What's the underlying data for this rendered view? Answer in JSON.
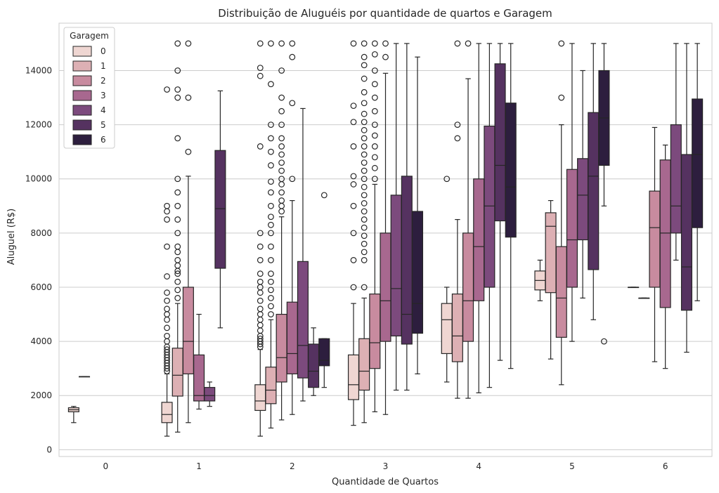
{
  "chart_data": {
    "type": "box",
    "title": "Distribuição de Aluguéis por quantidade de quartos e Garagem",
    "xlabel": "Quantidade de Quartos",
    "ylabel": "Aluguel (R$)",
    "categories": [
      "0",
      "1",
      "2",
      "3",
      "4",
      "5",
      "6"
    ],
    "ylim": [
      -250,
      15750
    ],
    "yticks": [
      0,
      2000,
      4000,
      6000,
      8000,
      10000,
      12000,
      14000
    ],
    "grid": "y",
    "legend": {
      "title": "Garagem",
      "position": "top-left",
      "entries": [
        "0",
        "1",
        "2",
        "3",
        "4",
        "5",
        "6"
      ]
    },
    "colors": [
      "#efd6d2",
      "#ddb0b4",
      "#c88b9f",
      "#a8688f",
      "#7c4a7d",
      "#553260",
      "#2d1e3e"
    ],
    "boxes": [
      {
        "category": "0",
        "garagem": "0",
        "whislo": 1000,
        "q1": 1400,
        "med": 1475,
        "q3": 1550,
        "whishi": 1600,
        "fliers": []
      },
      {
        "category": "0",
        "garagem": "1",
        "whislo": 2700,
        "q1": 2700,
        "med": 2700,
        "q3": 2700,
        "whishi": 2700,
        "fliers": []
      },
      {
        "category": "1",
        "garagem": "0",
        "whislo": 500,
        "q1": 1000,
        "med": 1300,
        "q3": 1750,
        "whishi": 2800,
        "fliers": [
          2900,
          3000,
          3100,
          3200,
          3300,
          3400,
          3500,
          3600,
          3700,
          3800,
          4000,
          4200,
          4500,
          4800,
          5000,
          5200,
          5500,
          5800,
          6400,
          7500,
          8500,
          8800,
          9000,
          13300
        ]
      },
      {
        "category": "1",
        "garagem": "1",
        "whislo": 650,
        "q1": 1980,
        "med": 2750,
        "q3": 3750,
        "whishi": 5400,
        "fliers": [
          5600,
          5900,
          6200,
          6500,
          6600,
          6800,
          7000,
          7300,
          7500,
          8000,
          8500,
          9000,
          9500,
          10000,
          11500,
          13000,
          13300,
          14000,
          15000
        ]
      },
      {
        "category": "1",
        "garagem": "2",
        "whislo": 1000,
        "q1": 2800,
        "med": 4000,
        "q3": 6000,
        "whishi": 10100,
        "fliers": [
          11000,
          13000,
          15000
        ]
      },
      {
        "category": "1",
        "garagem": "3",
        "whislo": 1500,
        "q1": 1800,
        "med": 2000,
        "q3": 3500,
        "whishi": 5000,
        "fliers": []
      },
      {
        "category": "1",
        "garagem": "4",
        "whislo": 1600,
        "q1": 1800,
        "med": 2000,
        "q3": 2300,
        "whishi": 2500,
        "fliers": []
      },
      {
        "category": "1",
        "garagem": "5",
        "whislo": 4500,
        "q1": 6700,
        "med": 8900,
        "q3": 11050,
        "whishi": 13250,
        "fliers": []
      },
      {
        "category": "2",
        "garagem": "0",
        "whislo": 500,
        "q1": 1450,
        "med": 1800,
        "q3": 2400,
        "whishi": 3700,
        "fliers": [
          3800,
          3900,
          4000,
          4100,
          4200,
          4400,
          4600,
          4800,
          5000,
          5200,
          5500,
          5800,
          6000,
          6200,
          6500,
          7000,
          7500,
          8000,
          11200,
          13800,
          14100,
          15000
        ]
      },
      {
        "category": "2",
        "garagem": "1",
        "whislo": 800,
        "q1": 1700,
        "med": 2200,
        "q3": 3050,
        "whishi": 4800,
        "fliers": [
          5000,
          5300,
          5600,
          5900,
          6200,
          6500,
          7000,
          7500,
          8000,
          8300,
          8600,
          9000,
          9500,
          9900,
          10500,
          11000,
          11500,
          12000,
          13500,
          15000
        ]
      },
      {
        "category": "2",
        "garagem": "2",
        "whislo": 1100,
        "q1": 2500,
        "med": 3400,
        "q3": 5000,
        "whishi": 8600,
        "fliers": [
          8800,
          9000,
          9200,
          9500,
          9800,
          10000,
          10300,
          10600,
          10900,
          11200,
          11500,
          12000,
          12500,
          13000,
          14000,
          15000
        ]
      },
      {
        "category": "2",
        "garagem": "3",
        "whislo": 1300,
        "q1": 2800,
        "med": 3550,
        "q3": 5450,
        "whishi": 9200,
        "fliers": [
          10000,
          12800,
          14500,
          15000
        ]
      },
      {
        "category": "2",
        "garagem": "4",
        "whislo": 1800,
        "q1": 2650,
        "med": 3850,
        "q3": 6950,
        "whishi": 12600,
        "fliers": []
      },
      {
        "category": "2",
        "garagem": "5",
        "whislo": 2000,
        "q1": 2300,
        "med": 2900,
        "q3": 3900,
        "whishi": 4500,
        "fliers": []
      },
      {
        "category": "2",
        "garagem": "6",
        "whislo": 2300,
        "q1": 3100,
        "med": 3300,
        "q3": 4100,
        "whishi": 4100,
        "fliers": [
          9400
        ]
      },
      {
        "category": "3",
        "garagem": "0",
        "whislo": 900,
        "q1": 1850,
        "med": 2400,
        "q3": 3500,
        "whishi": 5400,
        "fliers": [
          6000,
          7000,
          8000,
          9000,
          9800,
          10100,
          11200,
          12100,
          12700,
          15000
        ]
      },
      {
        "category": "3",
        "garagem": "1",
        "whislo": 1000,
        "q1": 2200,
        "med": 2900,
        "q3": 4100,
        "whishi": 5600,
        "fliers": [
          6000,
          7000,
          7300,
          7600,
          7900,
          8200,
          8500,
          8800,
          9100,
          9400,
          9700,
          10000,
          10300,
          10600,
          10900,
          11200,
          11500,
          11800,
          12100,
          12400,
          12800,
          13200,
          13700,
          14200,
          14500,
          15000
        ]
      },
      {
        "category": "3",
        "garagem": "2",
        "whislo": 1400,
        "q1": 3000,
        "med": 3950,
        "q3": 5750,
        "whishi": 9800,
        "fliers": [
          10000,
          10400,
          10800,
          11200,
          11600,
          12000,
          12500,
          13000,
          13500,
          14000,
          14600,
          15000
        ]
      },
      {
        "category": "3",
        "garagem": "3",
        "whislo": 1300,
        "q1": 4000,
        "med": 5500,
        "q3": 8000,
        "whishi": 13900,
        "fliers": [
          14500,
          15000
        ]
      },
      {
        "category": "3",
        "garagem": "4",
        "whislo": 2200,
        "q1": 4200,
        "med": 5950,
        "q3": 9400,
        "whishi": 15000,
        "fliers": []
      },
      {
        "category": "3",
        "garagem": "5",
        "whislo": 2200,
        "q1": 3900,
        "med": 5000,
        "q3": 10100,
        "whishi": 15000,
        "fliers": []
      },
      {
        "category": "3",
        "garagem": "6",
        "whislo": 2800,
        "q1": 4300,
        "med": 5400,
        "q3": 8800,
        "whishi": 14500,
        "fliers": []
      },
      {
        "category": "4",
        "garagem": "0",
        "whislo": 2500,
        "q1": 3550,
        "med": 4800,
        "q3": 5400,
        "whishi": 6000,
        "fliers": [
          10000
        ]
      },
      {
        "category": "4",
        "garagem": "1",
        "whislo": 1900,
        "q1": 3250,
        "med": 4200,
        "q3": 5750,
        "whishi": 8500,
        "fliers": [
          11500,
          12000,
          15000
        ]
      },
      {
        "category": "4",
        "garagem": "2",
        "whislo": 1900,
        "q1": 4000,
        "med": 5500,
        "q3": 8000,
        "whishi": 13700,
        "fliers": [
          15000
        ]
      },
      {
        "category": "4",
        "garagem": "3",
        "whislo": 2100,
        "q1": 5500,
        "med": 7500,
        "q3": 10000,
        "whishi": 15000,
        "fliers": []
      },
      {
        "category": "4",
        "garagem": "4",
        "whislo": 2300,
        "q1": 6000,
        "med": 9000,
        "q3": 11950,
        "whishi": 15000,
        "fliers": []
      },
      {
        "category": "4",
        "garagem": "5",
        "whislo": 3300,
        "q1": 8450,
        "med": 10500,
        "q3": 14250,
        "whishi": 15000,
        "fliers": []
      },
      {
        "category": "4",
        "garagem": "6",
        "whislo": 3000,
        "q1": 7850,
        "med": 9700,
        "q3": 12800,
        "whishi": 15000,
        "fliers": []
      },
      {
        "category": "5",
        "garagem": "0",
        "whislo": 5500,
        "q1": 5900,
        "med": 6250,
        "q3": 6600,
        "whishi": 7000,
        "fliers": []
      },
      {
        "category": "5",
        "garagem": "1",
        "whislo": 3350,
        "q1": 5800,
        "med": 8250,
        "q3": 8750,
        "whishi": 9200,
        "fliers": []
      },
      {
        "category": "5",
        "garagem": "2",
        "whislo": 2400,
        "q1": 4150,
        "med": 5600,
        "q3": 7500,
        "whishi": 12000,
        "fliers": [
          13000,
          15000
        ]
      },
      {
        "category": "5",
        "garagem": "3",
        "whislo": 4000,
        "q1": 6000,
        "med": 7750,
        "q3": 10350,
        "whishi": 15000,
        "fliers": []
      },
      {
        "category": "5",
        "garagem": "4",
        "whislo": 5600,
        "q1": 7750,
        "med": 9400,
        "q3": 10750,
        "whishi": 14000,
        "fliers": []
      },
      {
        "category": "5",
        "garagem": "5",
        "whislo": 4800,
        "q1": 6650,
        "med": 10100,
        "q3": 12450,
        "whishi": 15000,
        "fliers": []
      },
      {
        "category": "5",
        "garagem": "6",
        "whislo": 9000,
        "q1": 10500,
        "med": 12250,
        "q3": 14000,
        "whishi": 15000,
        "fliers": [
          4000
        ]
      },
      {
        "category": "6",
        "garagem": "0",
        "whislo": 6000,
        "q1": 6000,
        "med": 6000,
        "q3": 6000,
        "whishi": 6000,
        "fliers": []
      },
      {
        "category": "6",
        "garagem": "1",
        "whislo": 5600,
        "q1": 5600,
        "med": 5600,
        "q3": 5600,
        "whishi": 5600,
        "fliers": []
      },
      {
        "category": "6",
        "garagem": "2",
        "whislo": 3250,
        "q1": 6000,
        "med": 8200,
        "q3": 9550,
        "whishi": 11900,
        "fliers": []
      },
      {
        "category": "6",
        "garagem": "3",
        "whislo": 3000,
        "q1": 5250,
        "med": 8000,
        "q3": 10700,
        "whishi": 11250,
        "fliers": []
      },
      {
        "category": "6",
        "garagem": "4",
        "whislo": 7000,
        "q1": 8000,
        "med": 9000,
        "q3": 12000,
        "whishi": 15000,
        "fliers": []
      },
      {
        "category": "6",
        "garagem": "5",
        "whislo": 3600,
        "q1": 5150,
        "med": 6750,
        "q3": 10900,
        "whishi": 15000,
        "fliers": []
      },
      {
        "category": "6",
        "garagem": "6",
        "whislo": 5500,
        "q1": 8200,
        "med": 10900,
        "q3": 12950,
        "whishi": 15000,
        "fliers": []
      }
    ]
  }
}
